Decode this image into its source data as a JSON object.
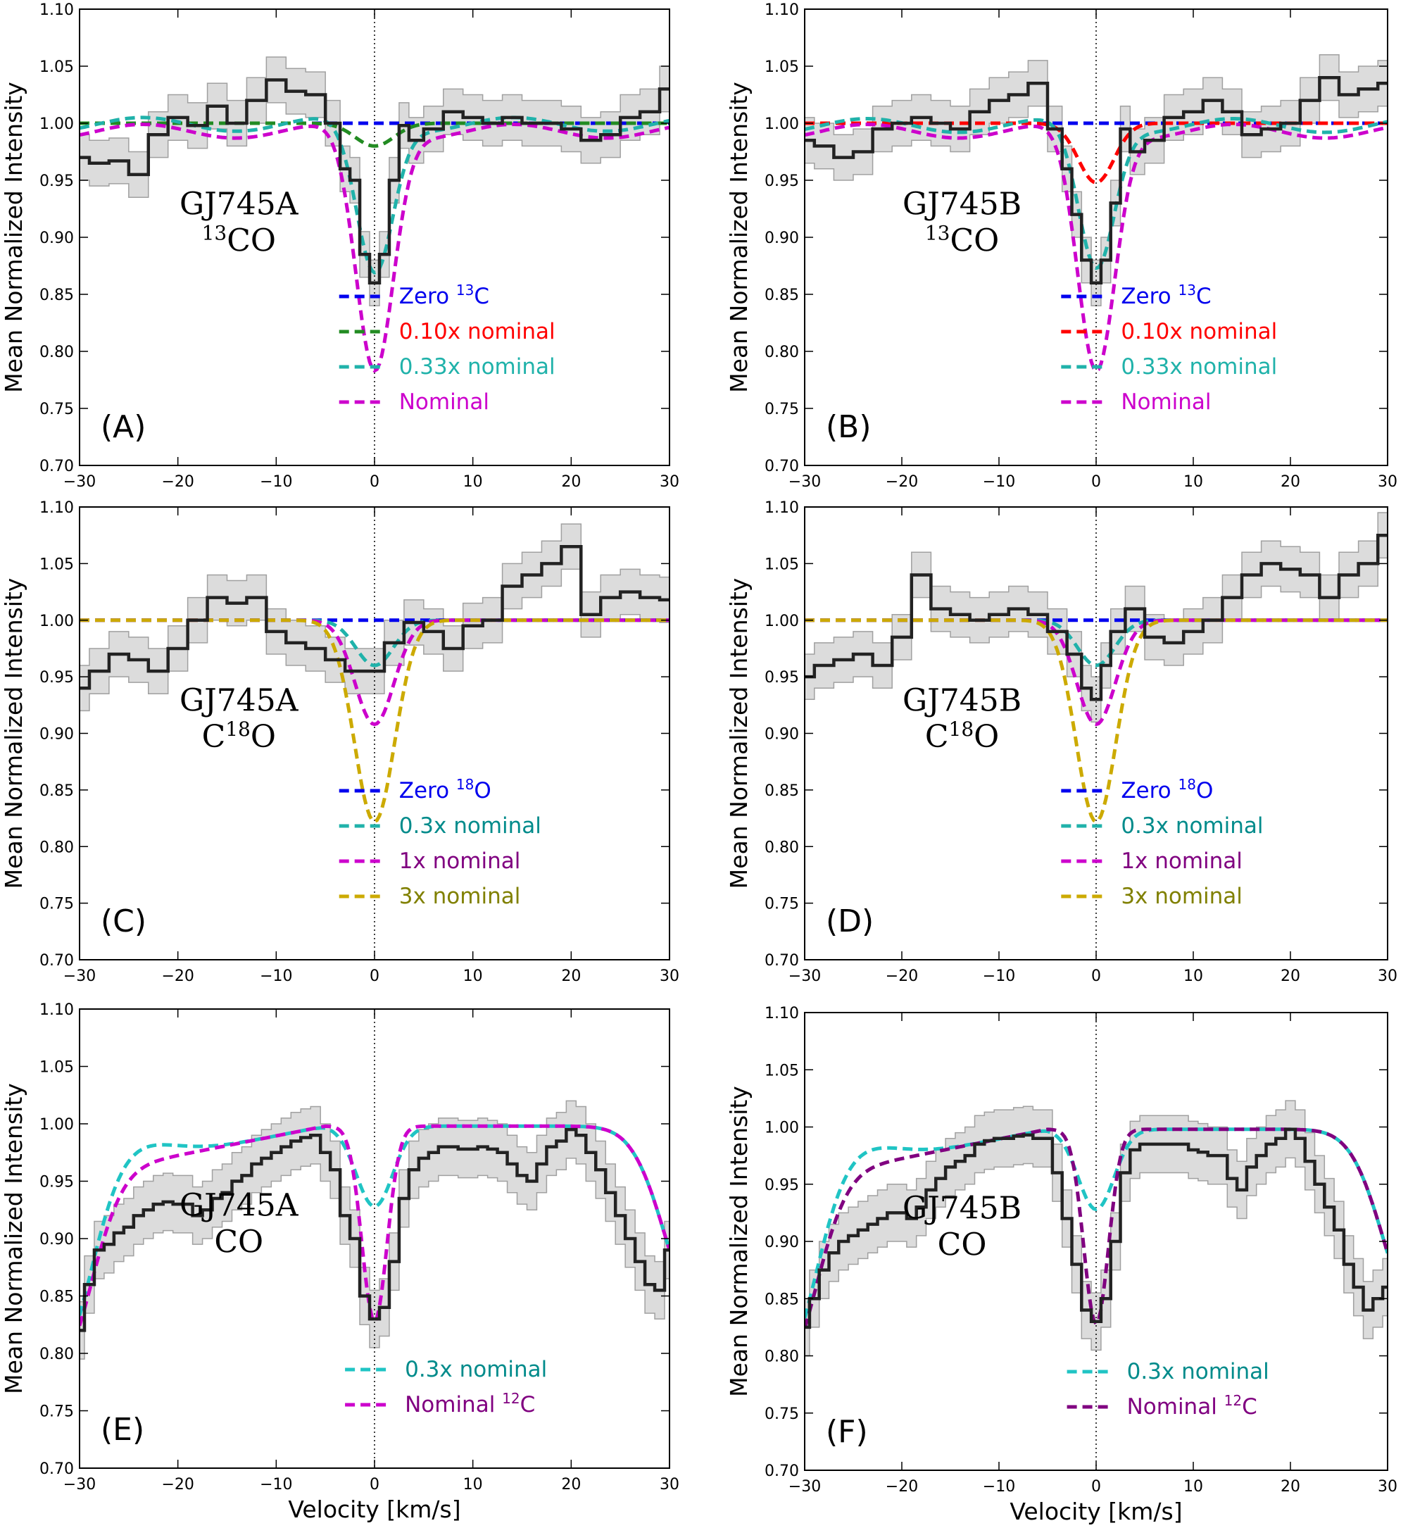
{
  "figure": {
    "xlabel": "Velocity [km/s]"
  },
  "chart_data": [
    {
      "id": "A",
      "type": "line",
      "panel_label": "(A)",
      "star": "GJ745A",
      "species_prefix": "",
      "species_sup": "13",
      "species_suffix": "CO",
      "xlabel": "",
      "ylabel": "Mean Normalized Intensity",
      "xlim": [
        -30,
        30
      ],
      "ylim": [
        0.7,
        1.1
      ],
      "xticks": [
        -30,
        -20,
        -10,
        0,
        10,
        20,
        30
      ],
      "xtick_labels": [
        "−30",
        "−20",
        "−10",
        "0",
        "10",
        "20",
        "30"
      ],
      "yticks": [
        0.7,
        0.75,
        0.8,
        0.85,
        0.9,
        0.95,
        1.0,
        1.05,
        1.1
      ],
      "ytick_labels": [
        "0.70",
        "0.75",
        "0.80",
        "0.85",
        "0.90",
        "0.95",
        "1.00",
        "1.05",
        "1.10"
      ],
      "observed": {
        "x": [
          -30,
          -28,
          -26,
          -24,
          -22,
          -20,
          -18,
          -16,
          -14,
          -12,
          -10,
          -8,
          -6,
          -4,
          -3,
          -2,
          -1,
          0,
          1,
          2,
          3,
          4,
          6,
          8,
          10,
          12,
          14,
          16,
          18,
          20,
          22,
          24,
          26,
          28,
          30
        ],
        "y": [
          0.97,
          0.965,
          0.967,
          0.955,
          0.99,
          1.005,
          0.998,
          1.015,
          1.0,
          1.02,
          1.038,
          1.028,
          1.025,
          1.0,
          0.96,
          0.95,
          0.885,
          0.86,
          0.885,
          0.95,
          0.998,
          0.985,
          0.995,
          1.01,
          1.005,
          1.0,
          1.005,
          1.0,
          1.0,
          0.995,
          0.985,
          0.99,
          1.005,
          1.01,
          1.03
        ],
        "err": 0.02
      },
      "models": [
        {
          "name": "Zero",
          "sup": "13",
          "suffix": "C",
          "color": "#0000ee",
          "depth": 0.0,
          "width": 0.0,
          "base": 1.0
        },
        {
          "name": "0.10x nominal",
          "color": "#ff0000",
          "depth": 0.02,
          "width": 2.8,
          "base": 1.0,
          "draw_color": "#228b22"
        },
        {
          "name": "0.33x nominal",
          "color": "#20b2aa",
          "depth": 0.13,
          "width": 2.6,
          "base": 0.999
        },
        {
          "name": "Nominal",
          "color": "#cc00cc",
          "depth": 0.21,
          "width": 2.7,
          "base": 0.993
        }
      ]
    },
    {
      "id": "B",
      "type": "line",
      "panel_label": "(B)",
      "star": "GJ745B",
      "species_prefix": "",
      "species_sup": "13",
      "species_suffix": "CO",
      "xlabel": "",
      "ylabel": "Mean Normalized Intensity",
      "xlim": [
        -30,
        30
      ],
      "ylim": [
        0.7,
        1.1
      ],
      "xticks": [
        -30,
        -20,
        -10,
        0,
        10,
        20,
        30
      ],
      "xtick_labels": [
        "−30",
        "−20",
        "−10",
        "0",
        "10",
        "20",
        "30"
      ],
      "yticks": [
        0.7,
        0.75,
        0.8,
        0.85,
        0.9,
        0.95,
        1.0,
        1.05,
        1.1
      ],
      "ytick_labels": [
        "0.70",
        "0.75",
        "0.80",
        "0.85",
        "0.90",
        "0.95",
        "1.00",
        "1.05",
        "1.10"
      ],
      "observed": {
        "x": [
          -30,
          -28,
          -26,
          -24,
          -22,
          -20,
          -18,
          -16,
          -14,
          -12,
          -10,
          -8,
          -6,
          -4,
          -3,
          -2,
          -1,
          0,
          1,
          2,
          3,
          4,
          6,
          8,
          10,
          12,
          14,
          16,
          18,
          20,
          22,
          24,
          26,
          28,
          30
        ],
        "y": [
          0.985,
          0.98,
          0.97,
          0.975,
          0.995,
          1.0,
          1.005,
          1.0,
          0.995,
          1.01,
          1.02,
          1.025,
          1.035,
          0.995,
          0.96,
          0.92,
          0.88,
          0.86,
          0.88,
          0.93,
          0.995,
          0.975,
          0.985,
          1.005,
          1.01,
          1.02,
          1.01,
          0.99,
          0.995,
          1.0,
          1.02,
          1.04,
          1.025,
          1.03,
          1.035
        ],
        "err": 0.02
      },
      "models": [
        {
          "name": "Zero",
          "sup": "13",
          "suffix": "C",
          "color": "#0000ee",
          "depth": 0.0,
          "width": 0.0,
          "base": 1.0
        },
        {
          "name": "0.10x nominal",
          "color": "#ff0000",
          "depth": 0.052,
          "width": 2.6,
          "base": 1.0
        },
        {
          "name": "0.33x nominal",
          "color": "#20b2aa",
          "depth": 0.125,
          "width": 2.6,
          "base": 0.998
        },
        {
          "name": "Nominal",
          "color": "#cc00cc",
          "depth": 0.21,
          "width": 2.7,
          "base": 0.993
        }
      ]
    },
    {
      "id": "C",
      "type": "line",
      "panel_label": "(C)",
      "star": "GJ745A",
      "species_prefix": "C",
      "species_sup": "18",
      "species_suffix": "O",
      "xlabel": "",
      "ylabel": "Mean Normalized Intensity",
      "xlim": [
        -30,
        30
      ],
      "ylim": [
        0.7,
        1.1
      ],
      "xticks": [
        -30,
        -20,
        -10,
        0,
        10,
        20,
        30
      ],
      "xtick_labels": [
        "−30",
        "−20",
        "−10",
        "0",
        "10",
        "20",
        "30"
      ],
      "yticks": [
        0.7,
        0.75,
        0.8,
        0.85,
        0.9,
        0.95,
        1.0,
        1.05,
        1.1
      ],
      "ytick_labels": [
        "0.70",
        "0.75",
        "0.80",
        "0.85",
        "0.90",
        "0.95",
        "1.00",
        "1.05",
        "1.10"
      ],
      "observed": {
        "x": [
          -30,
          -28,
          -26,
          -24,
          -22,
          -20,
          -18,
          -16,
          -14,
          -12,
          -10,
          -8,
          -6,
          -4,
          -2,
          0,
          2,
          4,
          6,
          8,
          10,
          12,
          14,
          16,
          18,
          20,
          22,
          24,
          26,
          28,
          30
        ],
        "y": [
          0.94,
          0.955,
          0.97,
          0.965,
          0.955,
          0.975,
          1.0,
          1.02,
          1.015,
          1.02,
          0.99,
          0.98,
          0.975,
          0.965,
          0.955,
          0.955,
          0.98,
          0.998,
          0.99,
          0.975,
          0.995,
          1.0,
          1.03,
          1.04,
          1.05,
          1.065,
          1.005,
          1.02,
          1.025,
          1.02,
          1.018
        ],
        "err": 0.02
      },
      "models": [
        {
          "name": "Zero",
          "sup": "18",
          "suffix": "O",
          "color": "#0000ee",
          "depth": 0.0,
          "width": 0.0,
          "base": 1.0
        },
        {
          "name": "0.3x nominal",
          "color": "#008b8b",
          "depth": 0.04,
          "width": 2.7,
          "base": 1.0,
          "draw_color": "#20b2aa"
        },
        {
          "name": "1x nominal",
          "color": "#800080",
          "depth": 0.092,
          "width": 2.8,
          "base": 1.0,
          "draw_color": "#cc00cc"
        },
        {
          "name": "3x nominal",
          "color": "#808000",
          "depth": 0.178,
          "width": 2.9,
          "base": 1.0,
          "draw_color": "#ccaa00"
        }
      ]
    },
    {
      "id": "D",
      "type": "line",
      "panel_label": "(D)",
      "star": "GJ745B",
      "species_prefix": "C",
      "species_sup": "18",
      "species_suffix": "O",
      "xlabel": "",
      "ylabel": "Mean Normalized Intensity",
      "xlim": [
        -30,
        30
      ],
      "ylim": [
        0.7,
        1.1
      ],
      "xticks": [
        -30,
        -20,
        -10,
        0,
        10,
        20,
        30
      ],
      "xtick_labels": [
        "−30",
        "−20",
        "−10",
        "0",
        "10",
        "20",
        "30"
      ],
      "yticks": [
        0.7,
        0.75,
        0.8,
        0.85,
        0.9,
        0.95,
        1.0,
        1.05,
        1.1
      ],
      "ytick_labels": [
        "0.70",
        "0.75",
        "0.80",
        "0.85",
        "0.90",
        "0.95",
        "1.00",
        "1.05",
        "1.10"
      ],
      "observed": {
        "x": [
          -30,
          -28,
          -26,
          -24,
          -22,
          -20,
          -18,
          -16,
          -14,
          -12,
          -10,
          -8,
          -6,
          -4,
          -2,
          -1,
          0,
          1,
          2,
          4,
          6,
          8,
          10,
          12,
          14,
          16,
          18,
          20,
          22,
          24,
          26,
          28,
          30
        ],
        "y": [
          0.95,
          0.96,
          0.965,
          0.97,
          0.96,
          0.985,
          1.04,
          1.01,
          1.005,
          1.0,
          1.005,
          1.01,
          1.005,
          0.99,
          0.97,
          0.94,
          0.93,
          0.96,
          0.99,
          1.01,
          0.985,
          0.98,
          0.99,
          1.0,
          1.02,
          1.04,
          1.05,
          1.045,
          1.04,
          1.02,
          1.04,
          1.05,
          1.075
        ],
        "err": 0.02
      },
      "models": [
        {
          "name": "Zero",
          "sup": "18",
          "suffix": "O",
          "color": "#0000ee",
          "depth": 0.0,
          "width": 0.0,
          "base": 1.0
        },
        {
          "name": "0.3x nominal",
          "color": "#008b8b",
          "depth": 0.04,
          "width": 2.7,
          "base": 1.0,
          "draw_color": "#20b2aa"
        },
        {
          "name": "1x nominal",
          "color": "#800080",
          "depth": 0.092,
          "width": 2.8,
          "base": 1.0,
          "draw_color": "#cc00cc"
        },
        {
          "name": "3x nominal",
          "color": "#808000",
          "depth": 0.178,
          "width": 2.9,
          "base": 1.0,
          "draw_color": "#ccaa00"
        }
      ]
    },
    {
      "id": "E",
      "type": "line",
      "panel_label": "(E)",
      "star": "GJ745A",
      "species_prefix": "",
      "species_sup": "",
      "species_suffix": "CO",
      "xlabel": "Velocity [km/s]",
      "ylabel": "Mean Normalized Intensity",
      "xlim": [
        -30,
        30
      ],
      "ylim": [
        0.7,
        1.1
      ],
      "xticks": [
        -30,
        -20,
        -10,
        0,
        10,
        20,
        30
      ],
      "xtick_labels": [
        "−30",
        "−20",
        "−10",
        "0",
        "10",
        "20",
        "30"
      ],
      "yticks": [
        0.7,
        0.75,
        0.8,
        0.85,
        0.9,
        0.95,
        1.0,
        1.05,
        1.1
      ],
      "ytick_labels": [
        "0.70",
        "0.75",
        "0.80",
        "0.85",
        "0.90",
        "0.95",
        "1.00",
        "1.05",
        "1.10"
      ],
      "observed": {
        "x": [
          -30,
          -29,
          -28,
          -27,
          -26,
          -25,
          -24,
          -23,
          -22,
          -21,
          -20,
          -19,
          -18,
          -17,
          -16,
          -15,
          -14,
          -13,
          -12,
          -11,
          -10,
          -9,
          -8,
          -7,
          -6,
          -5,
          -4,
          -3,
          -2,
          -1,
          0,
          1,
          2,
          3,
          4,
          5,
          6,
          7,
          8,
          9,
          10,
          11,
          12,
          13,
          14,
          15,
          16,
          17,
          18,
          19,
          20,
          21,
          22,
          23,
          24,
          25,
          26,
          27,
          28,
          29,
          30
        ],
        "y": [
          0.82,
          0.86,
          0.89,
          0.895,
          0.905,
          0.91,
          0.92,
          0.925,
          0.93,
          0.932,
          0.93,
          0.93,
          0.92,
          0.925,
          0.935,
          0.94,
          0.95,
          0.955,
          0.965,
          0.97,
          0.975,
          0.98,
          0.985,
          0.988,
          0.99,
          0.975,
          0.96,
          0.92,
          0.9,
          0.85,
          0.83,
          0.84,
          0.88,
          0.935,
          0.96,
          0.97,
          0.975,
          0.98,
          0.98,
          0.978,
          0.978,
          0.98,
          0.978,
          0.975,
          0.965,
          0.955,
          0.95,
          0.965,
          0.98,
          0.985,
          0.995,
          0.99,
          0.975,
          0.96,
          0.94,
          0.92,
          0.9,
          0.88,
          0.86,
          0.855,
          0.89
        ],
        "err": 0.025
      },
      "models": [
        {
          "name": "0.3x nominal",
          "color": "#008b8b",
          "draw_color": "#20c4c4",
          "kind": "co03"
        },
        {
          "name": "Nominal",
          "sup": "12",
          "suffix": "C",
          "color": "#800080",
          "draw_color": "#cc00cc",
          "kind": "co1"
        }
      ]
    },
    {
      "id": "F",
      "type": "line",
      "panel_label": "(F)",
      "star": "GJ745B",
      "species_prefix": "",
      "species_sup": "",
      "species_suffix": "CO",
      "xlabel": "Velocity [km/s]",
      "ylabel": "Mean Normalized Intensity",
      "xlim": [
        -30,
        30
      ],
      "ylim": [
        0.7,
        1.1
      ],
      "xticks": [
        -30,
        -20,
        -10,
        0,
        10,
        20,
        30
      ],
      "xtick_labels": [
        "−30",
        "−20",
        "−10",
        "0",
        "10",
        "20",
        "30"
      ],
      "yticks": [
        0.7,
        0.75,
        0.8,
        0.85,
        0.9,
        0.95,
        1.0,
        1.05,
        1.1
      ],
      "ytick_labels": [
        "0.70",
        "0.75",
        "0.80",
        "0.85",
        "0.90",
        "0.95",
        "1.00",
        "1.05",
        "1.10"
      ],
      "observed": {
        "x": [
          -30,
          -29,
          -28,
          -27,
          -26,
          -25,
          -24,
          -23,
          -22,
          -21,
          -20,
          -19,
          -18,
          -17,
          -16,
          -15,
          -14,
          -13,
          -12,
          -11,
          -10,
          -9,
          -8,
          -7,
          -6,
          -5,
          -4,
          -3,
          -2,
          -1,
          0,
          1,
          2,
          3,
          4,
          5,
          6,
          7,
          8,
          9,
          10,
          11,
          12,
          13,
          14,
          15,
          16,
          17,
          18,
          19,
          20,
          21,
          22,
          23,
          24,
          25,
          26,
          27,
          28,
          29,
          30
        ],
        "y": [
          0.825,
          0.85,
          0.875,
          0.89,
          0.9,
          0.905,
          0.91,
          0.915,
          0.92,
          0.925,
          0.925,
          0.92,
          0.93,
          0.945,
          0.955,
          0.965,
          0.97,
          0.975,
          0.985,
          0.988,
          0.99,
          0.99,
          0.992,
          0.993,
          0.99,
          0.99,
          0.96,
          0.92,
          0.88,
          0.84,
          0.83,
          0.85,
          0.9,
          0.96,
          0.98,
          0.985,
          0.985,
          0.985,
          0.985,
          0.985,
          0.98,
          0.978,
          0.975,
          0.975,
          0.955,
          0.945,
          0.965,
          0.975,
          0.985,
          0.99,
          0.998,
          0.99,
          0.97,
          0.95,
          0.93,
          0.91,
          0.88,
          0.86,
          0.84,
          0.85,
          0.86
        ],
        "err": 0.025
      },
      "models": [
        {
          "name": "0.3x nominal",
          "color": "#008b8b",
          "draw_color": "#20c4c4",
          "kind": "co03"
        },
        {
          "name": "Nominal",
          "sup": "12",
          "suffix": "C",
          "color": "#800080",
          "draw_color": "#800080",
          "kind": "co1"
        }
      ]
    }
  ]
}
